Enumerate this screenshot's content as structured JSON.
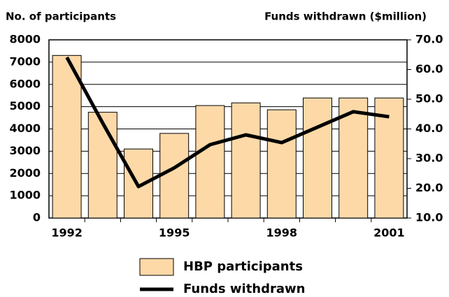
{
  "chart_data": {
    "type": "bar_line",
    "y_label": "No. of participants",
    "y2_label": "Funds withdrawn ($million)",
    "categories": [
      "1992",
      null,
      null,
      "1995",
      null,
      null,
      "1998",
      null,
      null,
      "2001"
    ],
    "series": [
      {
        "name": "HBP participants",
        "type": "bar",
        "color": "#fdd9a8",
        "values": [
          7300,
          4750,
          3100,
          3800,
          5050,
          5170,
          4860,
          5390,
          5390,
          5390
        ]
      },
      {
        "name": "Funds withdrawn",
        "type": "line",
        "axis": "y2",
        "color": "#000000",
        "values": [
          64.1,
          42,
          20.6,
          26.9,
          34.7,
          38.0,
          35.4,
          40.6,
          45.8,
          44.1
        ]
      }
    ],
    "ylim": [
      0,
      8000
    ],
    "yticks": [
      0,
      1000,
      2000,
      3000,
      4000,
      5000,
      6000,
      7000,
      8000
    ],
    "y2lim": [
      10,
      70
    ],
    "y2ticks": [
      {
        "value": 10,
        "label": "10.0"
      },
      {
        "value": 20,
        "label": "20.0"
      },
      {
        "value": 30,
        "label": "30.0"
      },
      {
        "value": 40,
        "label": "40.0"
      },
      {
        "value": 50,
        "label": "50.0"
      },
      {
        "value": 60,
        "label": "60.0"
      },
      {
        "value": 70,
        "label": "70.0"
      }
    ],
    "grid": true
  }
}
